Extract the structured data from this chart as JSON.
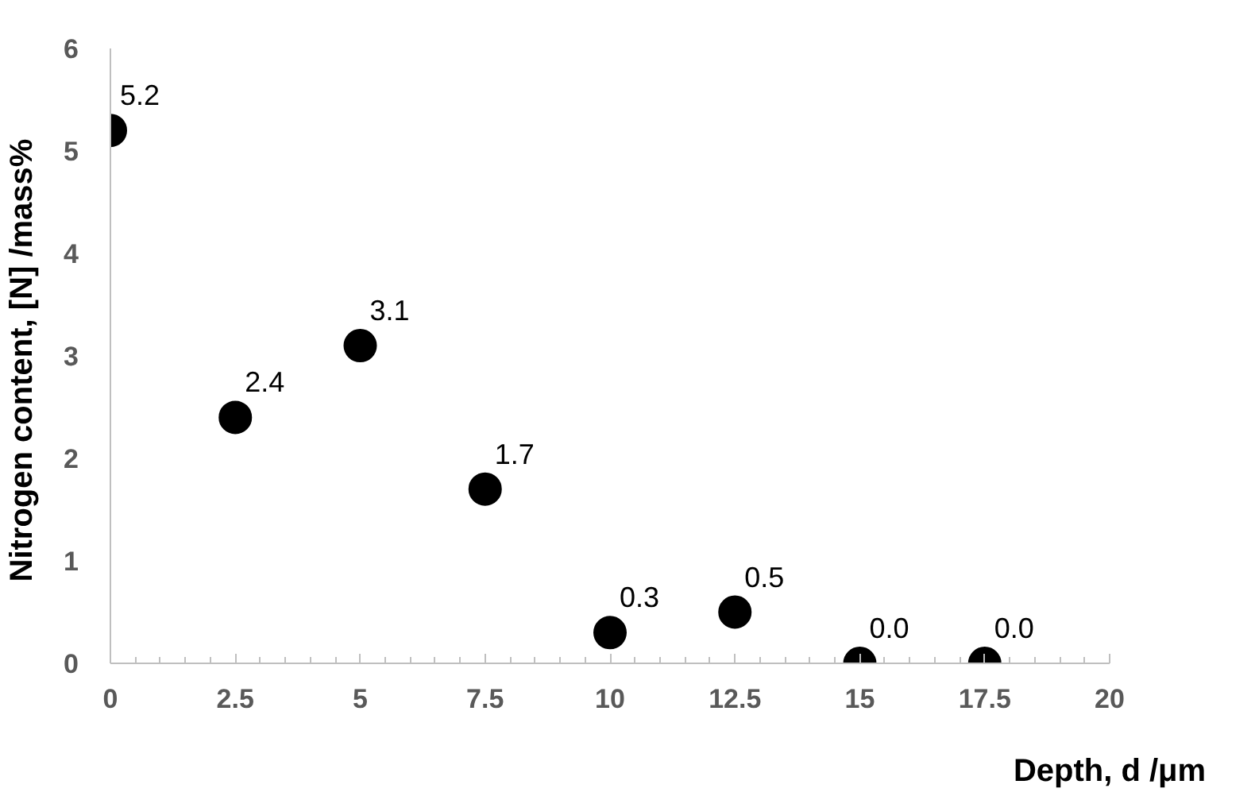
{
  "chart_data": {
    "type": "scatter",
    "xlabel": "Depth, d /μm",
    "ylabel": "Nitrogen  content, [N] /mass%",
    "x": [
      0,
      2.5,
      5,
      7.5,
      10,
      12.5,
      15,
      17.5
    ],
    "series": [
      {
        "color": "#000000",
        "values": [
          5.2,
          2.4,
          3.1,
          1.7,
          0.3,
          0.5,
          0.0,
          0.0
        ],
        "value_labels": [
          "5.2",
          "2.4",
          "3.1",
          "1.7",
          "0.3",
          "0.5",
          "0.0",
          "0.0"
        ]
      }
    ],
    "xlim": [
      0,
      20
    ],
    "xticks": [
      0,
      {
        "value": 2.5,
        "label": "2.5"
      },
      5,
      {
        "value": 7.5,
        "label": "7.5"
      },
      10,
      {
        "value": 12.5,
        "label": "12.5"
      },
      15,
      {
        "value": 17.5,
        "label": "17.5"
      },
      20
    ],
    "ylim": [
      0,
      6
    ],
    "yticks": [
      0,
      1,
      2,
      3,
      4,
      5,
      6
    ],
    "grid": false,
    "marker": "circle"
  }
}
